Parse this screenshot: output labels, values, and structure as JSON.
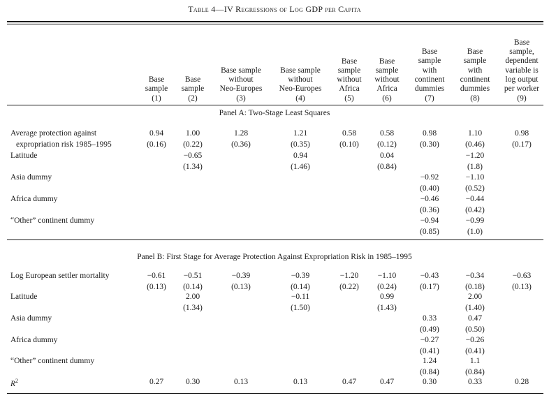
{
  "table": {
    "title": "Table 4—IV Regressions of Log GDP per Capita",
    "columns": [
      {
        "header": "Base\nsample\n(1)"
      },
      {
        "header": "Base\nsample\n(2)"
      },
      {
        "header": "Base sample\nwithout\nNeo-Europes\n(3)"
      },
      {
        "header": "Base sample\nwithout\nNeo-Europes\n(4)"
      },
      {
        "header": "Base\nsample\nwithout\nAfrica\n(5)"
      },
      {
        "header": "Base\nsample\nwithout\nAfrica\n(6)"
      },
      {
        "header": "Base\nsample\nwith\ncontinent\ndummies\n(7)"
      },
      {
        "header": "Base\nsample\nwith\ncontinent\ndummies\n(8)"
      },
      {
        "header": "Base\nsample,\ndependent\nvariable is\nlog output\nper worker\n(9)"
      }
    ],
    "panel_a": {
      "title": "Panel A: Two-Stage Least Squares",
      "rows": [
        {
          "label": "Average protection against",
          "label2": "expropriation risk 1985–1995",
          "values": [
            "0.94",
            "1.00",
            "1.28",
            "1.21",
            "0.58",
            "0.58",
            "0.98",
            "1.10",
            "0.98"
          ],
          "se": [
            "(0.16)",
            "(0.22)",
            "(0.36)",
            "(0.35)",
            "(0.10)",
            "(0.12)",
            "(0.30)",
            "(0.46)",
            "(0.17)"
          ]
        },
        {
          "label": "Latitude",
          "values": [
            "",
            "−0.65",
            "",
            "0.94",
            "",
            "0.04",
            "",
            "−1.20",
            ""
          ],
          "se": [
            "",
            "(1.34)",
            "",
            "(1.46)",
            "",
            "(0.84)",
            "",
            "(1.8)",
            ""
          ]
        },
        {
          "label": "Asia dummy",
          "values": [
            "",
            "",
            "",
            "",
            "",
            "",
            "−0.92",
            "−1.10",
            ""
          ],
          "se": [
            "",
            "",
            "",
            "",
            "",
            "",
            "(0.40)",
            "(0.52)",
            ""
          ]
        },
        {
          "label": "Africa dummy",
          "values": [
            "",
            "",
            "",
            "",
            "",
            "",
            "−0.46",
            "−0.44",
            ""
          ],
          "se": [
            "",
            "",
            "",
            "",
            "",
            "",
            "(0.36)",
            "(0.42)",
            ""
          ]
        },
        {
          "label": "“Other” continent dummy",
          "values": [
            "",
            "",
            "",
            "",
            "",
            "",
            "−0.94",
            "−0.99",
            ""
          ],
          "se": [
            "",
            "",
            "",
            "",
            "",
            "",
            "(0.85)",
            "(1.0)",
            ""
          ]
        }
      ]
    },
    "panel_b": {
      "title": "Panel B: First Stage for Average Protection Against Expropriation Risk in 1985–1995",
      "rows": [
        {
          "label": "Log European settler mortality",
          "values": [
            "−0.61",
            "−0.51",
            "−0.39",
            "−0.39",
            "−1.20",
            "−1.10",
            "−0.43",
            "−0.34",
            "−0.63"
          ],
          "se": [
            "(0.13)",
            "(0.14)",
            "(0.13)",
            "(0.14)",
            "(0.22)",
            "(0.24)",
            "(0.17)",
            "(0.18)",
            "(0.13)"
          ]
        },
        {
          "label": "Latitude",
          "values": [
            "",
            "2.00",
            "",
            "−0.11",
            "",
            "0.99",
            "",
            "2.00",
            ""
          ],
          "se": [
            "",
            "(1.34)",
            "",
            "(1.50)",
            "",
            "(1.43)",
            "",
            "(1.40)",
            ""
          ]
        },
        {
          "label": "Asia dummy",
          "values": [
            "",
            "",
            "",
            "",
            "",
            "",
            "0.33",
            "0.47",
            ""
          ],
          "se": [
            "",
            "",
            "",
            "",
            "",
            "",
            "(0.49)",
            "(0.50)",
            ""
          ]
        },
        {
          "label": "Africa dummy",
          "values": [
            "",
            "",
            "",
            "",
            "",
            "",
            "−0.27",
            "−0.26",
            ""
          ],
          "se": [
            "",
            "",
            "",
            "",
            "",
            "",
            "(0.41)",
            "(0.41)",
            ""
          ]
        },
        {
          "label": "“Other” continent dummy",
          "values": [
            "",
            "",
            "",
            "",
            "",
            "",
            "1.24",
            "1.1",
            ""
          ],
          "se": [
            "",
            "",
            "",
            "",
            "",
            "",
            "(0.84)",
            "(0.84)",
            ""
          ]
        }
      ],
      "r2": {
        "label": "R",
        "sup": "2",
        "values": [
          "0.27",
          "0.30",
          "0.13",
          "0.13",
          "0.47",
          "0.47",
          "0.30",
          "0.33",
          "0.28"
        ]
      }
    }
  }
}
